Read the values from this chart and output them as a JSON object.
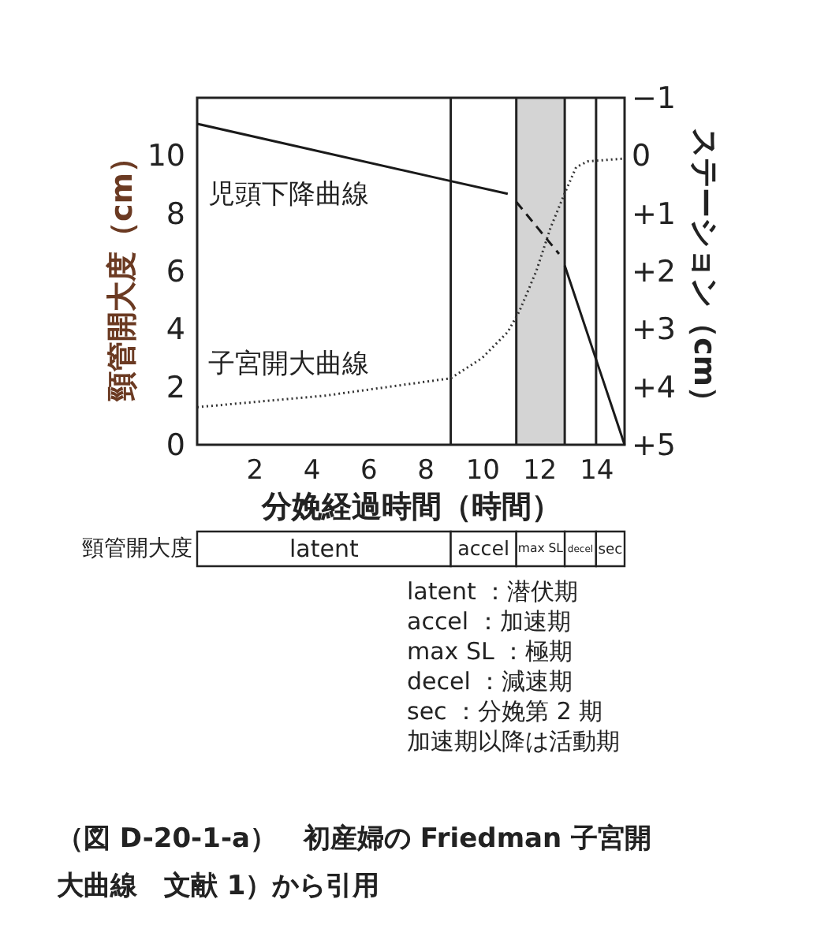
{
  "chart_data": [
    {
      "type": "line",
      "xlabel": "分娩経過時間（時間）",
      "ylabel": "頸管開大度（cm）",
      "y2label": "ステーション（cm）",
      "xlim": [
        0,
        15
      ],
      "xticks": [
        2,
        4,
        6,
        8,
        10,
        12,
        14
      ],
      "ylim": [
        0,
        12
      ],
      "yticks": [
        0,
        2,
        4,
        6,
        8,
        10
      ],
      "y2lim": [
        5,
        -1
      ],
      "y2ticks": [
        {
          "value": -1,
          "label": "−1"
        },
        0,
        {
          "value": 1,
          "label": "+1"
        },
        {
          "value": 2,
          "label": "+2"
        },
        {
          "value": 3,
          "label": "+3"
        },
        {
          "value": 4,
          "label": "+4"
        },
        {
          "value": 5,
          "label": "+5"
        }
      ],
      "grid": false,
      "series": [
        {
          "name": "児頭下降曲線",
          "axis": "y2",
          "color": "#1a1a1a",
          "line_style": "solid",
          "x": [
            0,
            8.9,
            10.9
          ],
          "values": [
            -0.55,
            0.44,
            0.66
          ]
        },
        {
          "axis": "y2",
          "color": "#1a1a1a",
          "line_style": "dashed",
          "x": [
            11.2,
            12.7
          ],
          "values": [
            0.8,
            1.7
          ]
        },
        {
          "axis": "y2",
          "color": "#1a1a1a",
          "line_style": "solid",
          "x": [
            12.9,
            15
          ],
          "values": [
            1.9,
            5
          ]
        },
        {
          "name": "子宮開大曲線",
          "color": "#333333",
          "line_style": "dotted",
          "x": [
            0,
            4.5,
            8.9,
            10,
            10.9,
            11.3,
            11.9,
            12.4,
            12.9,
            13.3,
            13.7,
            15
          ],
          "values": [
            1.3,
            1.7,
            2.3,
            3.0,
            3.9,
            4.6,
            6.0,
            7.5,
            8.7,
            9.6,
            9.8,
            9.9
          ]
        }
      ],
      "ref_lines": [
        {
          "axis": "x",
          "value": 8.9
        },
        {
          "axis": "x",
          "value": 11.2
        },
        {
          "axis": "x",
          "value": 12.9
        },
        {
          "axis": "x",
          "value": 14
        }
      ],
      "bands": [
        {
          "axis": "x",
          "from": 11.2,
          "to": 12.9,
          "color": "#d4d4d4"
        }
      ]
    },
    {
      "type": "other",
      "ylabel": "頸管開大度",
      "categories": [
        "latent",
        "accel",
        "max SL",
        "decel",
        "sec"
      ],
      "annotations": [
        "latent ：潜伏期",
        "accel ：加速期",
        "max SL ：極期",
        "decel ：減速期",
        "sec ：分娩第 2 期",
        "加速期以降は活動期"
      ]
    },
    {
      "type": "other",
      "annotations": [
        "（図 D-20-1-a）　初産婦の Friedman 子宮開",
        "大曲線　文献 1）から引用"
      ]
    }
  ]
}
